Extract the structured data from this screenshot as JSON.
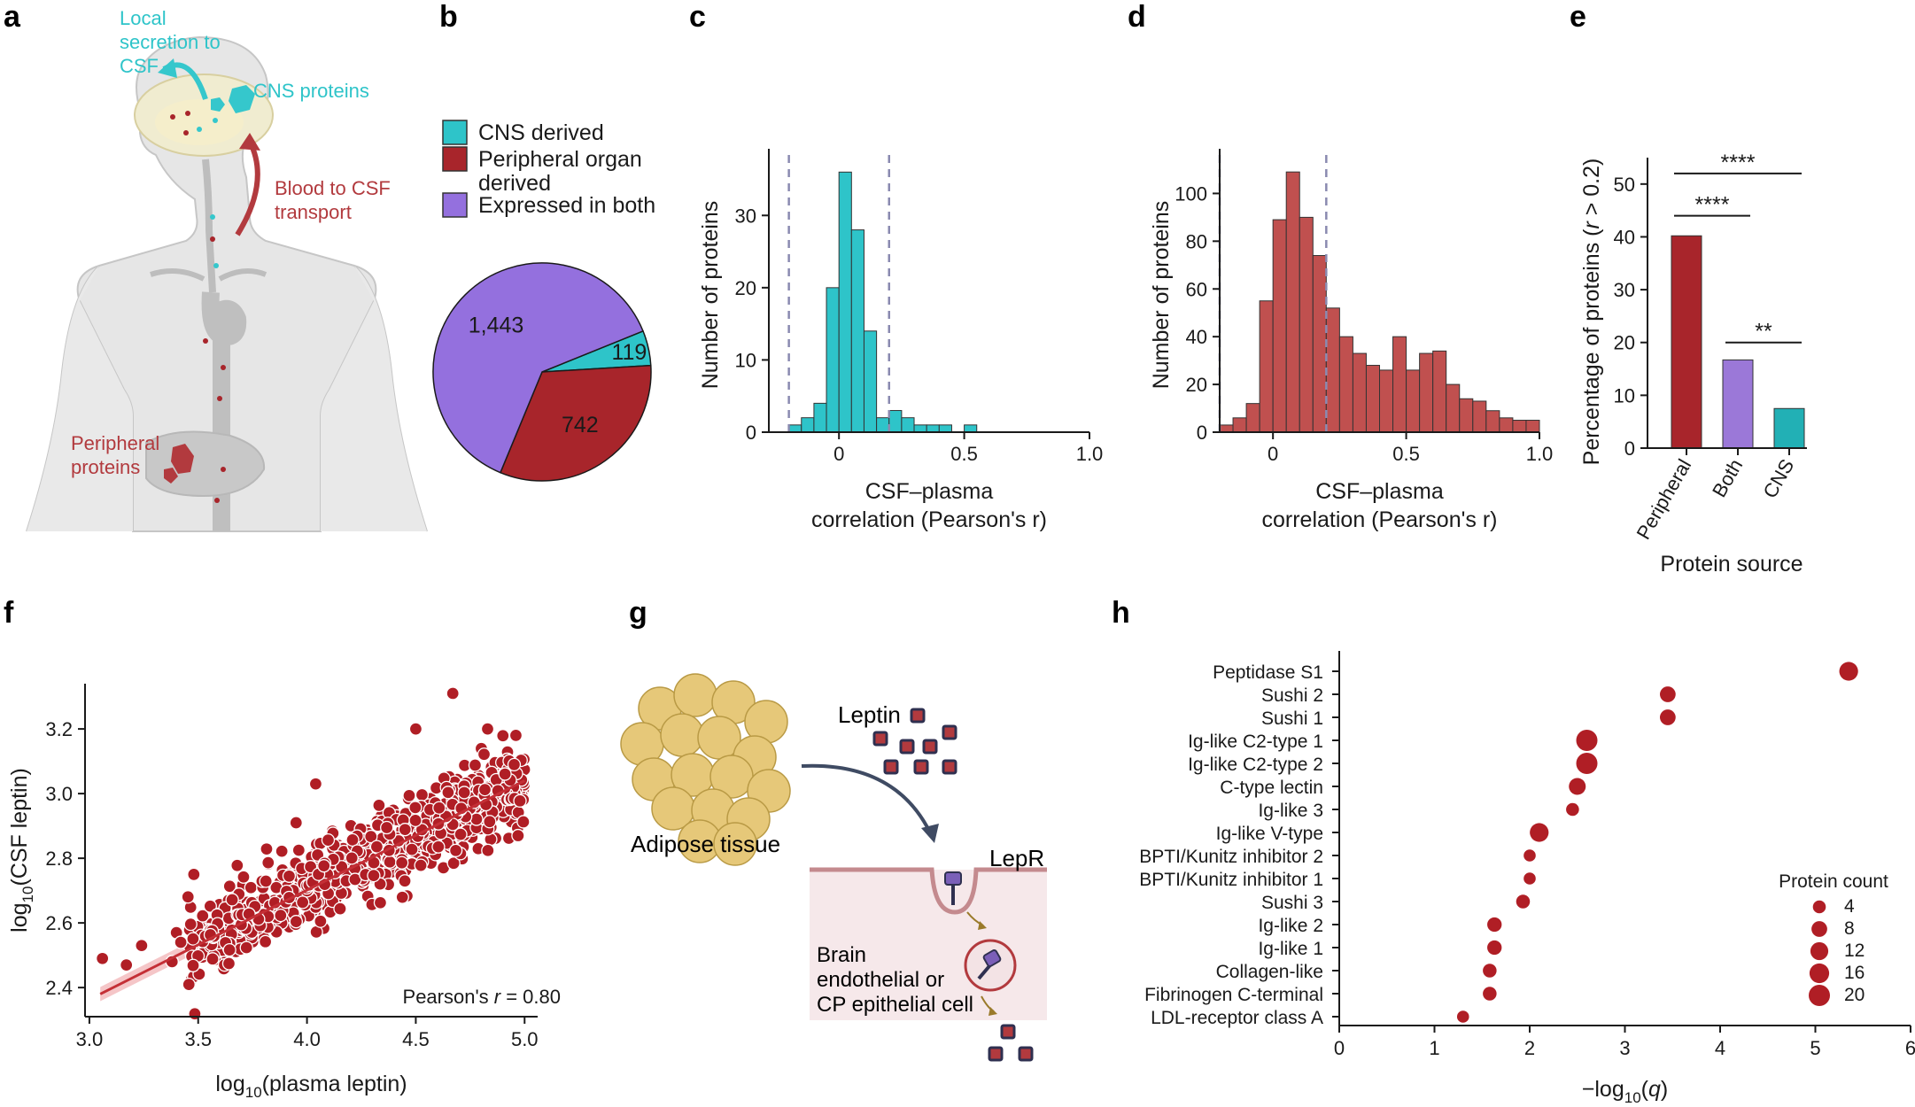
{
  "colors": {
    "cns": "#2ec4c9",
    "peripheral": "#a8252b",
    "both": "#9b78d8",
    "both_pie": "#9470de",
    "dashed": "#8a8ab0",
    "anatomy_peripheral": "#b23a3e",
    "anatomy_cns": "#35c7cc"
  },
  "panel_letters": [
    "a",
    "b",
    "c",
    "d",
    "e",
    "f",
    "g",
    "h"
  ],
  "panel_a": {
    "local_secretion": [
      "Local",
      "secretion to",
      "CSF"
    ],
    "cns_proteins": "CNS proteins",
    "blood_to_csf": [
      "Blood to CSF",
      "transport"
    ],
    "peripheral_proteins": [
      "Peripheral",
      "proteins"
    ]
  },
  "panel_b": {
    "legend": [
      {
        "label_lines": [
          "CNS derived"
        ],
        "color": "#2ec4c9"
      },
      {
        "label_lines": [
          "Peripheral organ",
          "derived"
        ],
        "color": "#a8252b"
      },
      {
        "label_lines": [
          "Expressed in both"
        ],
        "color": "#9470de"
      }
    ]
  },
  "panel_g": {
    "adipose": "Adipose tissue",
    "leptin": "Leptin",
    "lepr": "LepR",
    "cell": [
      "Brain",
      "endothelial or",
      "CP epithelial cell"
    ]
  },
  "chart_data": [
    {
      "panel": "b",
      "type": "pie",
      "slices": [
        {
          "label": "CNS derived",
          "value": 119,
          "display": "119",
          "color": "#2ec4c9"
        },
        {
          "label": "Peripheral organ derived",
          "value": 742,
          "display": "742",
          "color": "#a8252b"
        },
        {
          "label": "Expressed in both",
          "value": 1443,
          "display": "1,443",
          "color": "#9470de"
        }
      ]
    },
    {
      "panel": "c",
      "type": "bar",
      "title": "",
      "xlabel_lines": [
        "CSF–plasma",
        "correlation (Pearson's r)"
      ],
      "ylabel": "Number of proteins",
      "xlim": [
        -0.28,
        1.0
      ],
      "ylim": [
        0,
        38
      ],
      "xticks": [
        "0",
        "0.5",
        "1.0"
      ],
      "yticks": [
        "0",
        "10",
        "20",
        "30"
      ],
      "bin_width": 0.05,
      "bin_starts": [
        -0.2,
        -0.15,
        -0.1,
        -0.05,
        0.0,
        0.05,
        0.1,
        0.15,
        0.2,
        0.25,
        0.3,
        0.35,
        0.4,
        0.45,
        0.5
      ],
      "counts": [
        1,
        2,
        4,
        20,
        36,
        28,
        14,
        2,
        3,
        2,
        1,
        1,
        1,
        0,
        1
      ],
      "dashed_lines": [
        -0.2,
        0.2
      ],
      "color": "#2ec4c9"
    },
    {
      "panel": "d",
      "type": "bar",
      "title": "",
      "xlabel_lines": [
        "CSF–plasma",
        "correlation (Pearson's r)"
      ],
      "ylabel": "Number of proteins",
      "xlim": [
        -0.2,
        1.0
      ],
      "ylim": [
        0,
        115
      ],
      "xticks": [
        "0",
        "0.5",
        "1.0"
      ],
      "yticks": [
        "0",
        "20",
        "40",
        "60",
        "80",
        "100"
      ],
      "bin_width": 0.05,
      "bin_starts": [
        -0.2,
        -0.15,
        -0.1,
        -0.05,
        0.0,
        0.05,
        0.1,
        0.15,
        0.2,
        0.25,
        0.3,
        0.35,
        0.4,
        0.45,
        0.5,
        0.55,
        0.6,
        0.65,
        0.7,
        0.75,
        0.8,
        0.85,
        0.9,
        0.95
      ],
      "counts": [
        3,
        6,
        12,
        55,
        89,
        109,
        90,
        74,
        52,
        40,
        33,
        28,
        26,
        40,
        26,
        33,
        34,
        20,
        14,
        13,
        9,
        6,
        5,
        5
      ],
      "dashed_lines": [
        -0.2,
        0.2
      ],
      "color": "#c0504f"
    },
    {
      "panel": "e",
      "type": "bar",
      "categories": [
        "Peripheral",
        "Both",
        "CNS"
      ],
      "values": [
        40.2,
        16.7,
        7.5
      ],
      "colors": [
        "#a8252b",
        "#9b78d8",
        "#22b0b5"
      ],
      "xlabel": "Protein source",
      "ylabel": "Percentage of proteins (r > 0.2)",
      "ylim": [
        0,
        55
      ],
      "yticks": [
        "0",
        "10",
        "20",
        "30",
        "40",
        "50"
      ],
      "significance": [
        {
          "from": 0,
          "to": 2,
          "label": "****",
          "level": 52
        },
        {
          "from": 0,
          "to": 1,
          "label": "****",
          "level": 44
        },
        {
          "from": 1,
          "to": 2,
          "label": "**",
          "level": 20
        }
      ]
    },
    {
      "panel": "f",
      "type": "scatter",
      "xlabel": "log10(plasma leptin)",
      "ylabel": "log10(CSF leptin)",
      "xlim": [
        2.98,
        5.06
      ],
      "ylim": [
        2.31,
        3.34
      ],
      "xticks": [
        "3.0",
        "3.5",
        "4.0",
        "4.5",
        "5.0"
      ],
      "yticks": [
        "2.4",
        "2.6",
        "2.8",
        "3.0",
        "3.2"
      ],
      "annotation": "Pearson's r = 0.80",
      "fit_line": {
        "x": [
          3.05,
          5.0
        ],
        "y": [
          2.38,
          3.04
        ]
      },
      "n_points": 800,
      "trend": {
        "slope": 0.338,
        "intercept": 1.35,
        "x_range": [
          3.45,
          5.0
        ],
        "y_spread": 0.06
      },
      "notable_points": [
        {
          "x": 3.06,
          "y": 2.49
        },
        {
          "x": 3.17,
          "y": 2.47
        },
        {
          "x": 3.24,
          "y": 2.53
        },
        {
          "x": 3.38,
          "y": 2.48
        },
        {
          "x": 3.4,
          "y": 2.57
        },
        {
          "x": 3.42,
          "y": 2.54
        },
        {
          "x": 3.48,
          "y": 2.75
        },
        {
          "x": 3.95,
          "y": 2.91
        },
        {
          "x": 4.04,
          "y": 3.03
        },
        {
          "x": 4.5,
          "y": 3.2
        },
        {
          "x": 4.67,
          "y": 3.31
        },
        {
          "x": 4.83,
          "y": 3.2
        },
        {
          "x": 4.96,
          "y": 3.18
        },
        {
          "x": 4.97,
          "y": 2.87
        }
      ],
      "color": "#b01e25"
    },
    {
      "panel": "h",
      "type": "scatter",
      "categories": [
        "Peptidase S1",
        "Sushi 2",
        "Sushi 1",
        "Ig-like C2-type 1",
        "Ig-like C2-type 2",
        "C-type lectin",
        "Ig-like 3",
        "Ig-like V-type",
        "BPTI/Kunitz inhibitor 2",
        "BPTI/Kunitz inhibitor 1",
        "Sushi 3",
        "Ig-like 2",
        "Ig-like 1",
        "Collagen-like",
        "Fibrinogen C-terminal",
        "LDL-receptor class A"
      ],
      "x": [
        5.35,
        3.45,
        3.45,
        2.6,
        2.6,
        2.5,
        2.45,
        2.1,
        2.0,
        2.0,
        1.93,
        1.63,
        1.63,
        1.58,
        1.58,
        1.3
      ],
      "sizes": [
        14,
        8,
        8,
        20,
        20,
        10,
        4,
        14,
        3,
        3,
        5,
        6,
        6,
        5,
        5,
        3
      ],
      "xlabel": "−log10(q)",
      "xlim": [
        0,
        6
      ],
      "xticks": [
        "0",
        "1",
        "2",
        "3",
        "4",
        "5",
        "6"
      ],
      "size_legend": {
        "title": "Protein count",
        "sizes": [
          4,
          8,
          12,
          16,
          20
        ],
        "labels": [
          "4",
          "8",
          "12",
          "16",
          "20"
        ]
      },
      "color": "#b01e25"
    }
  ]
}
